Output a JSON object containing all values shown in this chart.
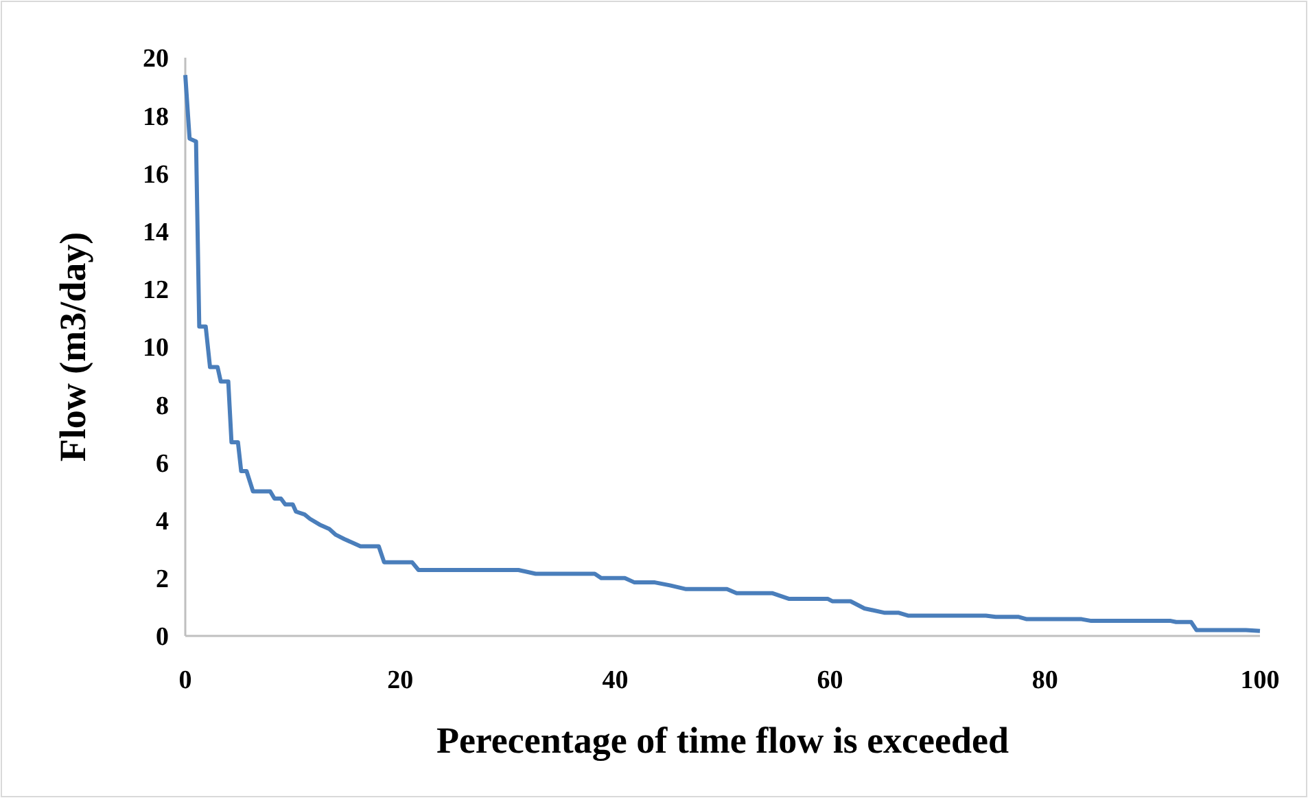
{
  "chart_data": {
    "type": "line",
    "xlabel": "Perecentage of time flow is exceeded",
    "ylabel": "Flow (m3/day)",
    "xlim": [
      0,
      100
    ],
    "xticks": [
      0,
      20,
      40,
      60,
      80,
      100
    ],
    "ylim": [
      0,
      20
    ],
    "yticks": [
      0,
      2,
      4,
      6,
      8,
      10,
      12,
      14,
      16,
      18,
      20
    ],
    "grid": false,
    "marker": "none",
    "line_style": "solid",
    "series": [
      {
        "color": "#4a7ebb",
        "x": [
          0,
          0.4,
          1.0,
          1.3,
          1.9,
          2.3,
          3.0,
          3.3,
          4.0,
          4.3,
          4.9,
          5.2,
          5.7,
          6.3,
          7.9,
          8.3,
          8.9,
          9.3,
          10.0,
          10.3,
          11.1,
          11.6,
          12.5,
          13.4,
          14.0,
          14.8,
          15.7,
          16.3,
          18.0,
          18.5,
          21.1,
          21.7,
          31.0,
          32.6,
          38.1,
          38.7,
          40.9,
          41.8,
          43.7,
          45.1,
          46.6,
          50.4,
          51.3,
          54.6,
          56.2,
          59.8,
          60.2,
          61.9,
          63.2,
          65.1,
          66.4,
          67.3,
          74.5,
          75.4,
          77.5,
          78.3,
          83.4,
          84.3,
          91.7,
          92.2,
          93.6,
          94.1,
          98.7,
          100
        ],
        "values": [
          19.4,
          17.2,
          17.1,
          10.7,
          10.7,
          9.3,
          9.3,
          8.8,
          8.8,
          6.7,
          6.7,
          5.7,
          5.7,
          5.0,
          5.0,
          4.75,
          4.75,
          4.55,
          4.55,
          4.3,
          4.2,
          4.05,
          3.85,
          3.7,
          3.5,
          3.35,
          3.2,
          3.1,
          3.1,
          2.55,
          2.55,
          2.28,
          2.28,
          2.15,
          2.15,
          2.0,
          2.0,
          1.85,
          1.85,
          1.75,
          1.62,
          1.62,
          1.48,
          1.48,
          1.28,
          1.28,
          1.2,
          1.2,
          0.95,
          0.8,
          0.8,
          0.7,
          0.7,
          0.66,
          0.66,
          0.58,
          0.58,
          0.52,
          0.52,
          0.48,
          0.48,
          0.2,
          0.2,
          0.17
        ]
      }
    ]
  }
}
